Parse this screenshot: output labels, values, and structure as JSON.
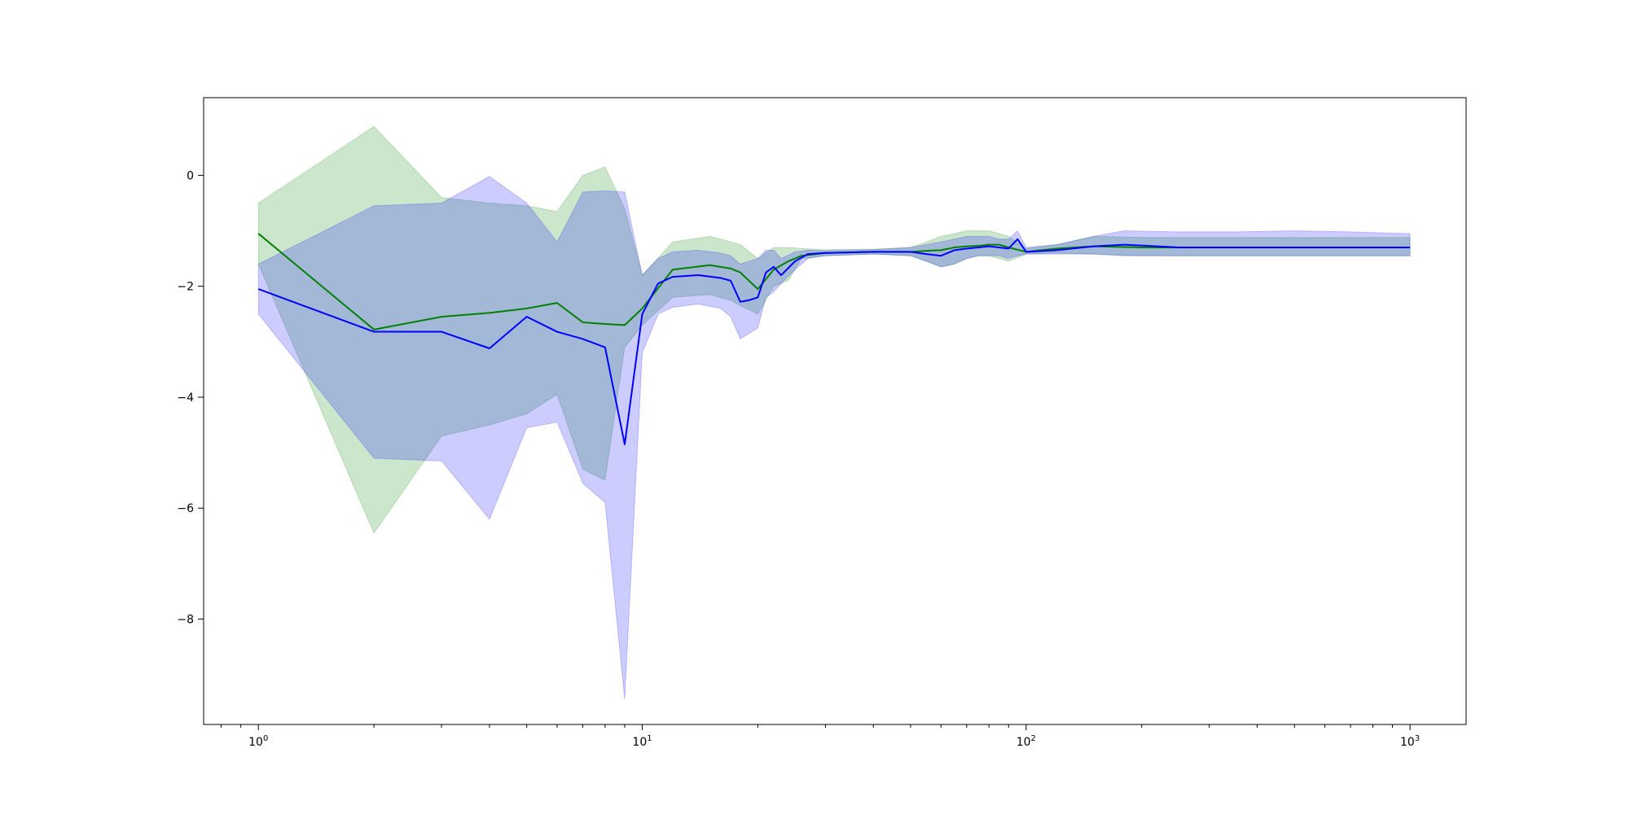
{
  "chart_data": {
    "type": "line",
    "title": "",
    "xlabel": "",
    "ylabel": "",
    "xscale": "log",
    "xlim": [
      0.72,
      1400
    ],
    "ylim": [
      -9.9,
      1.4
    ],
    "grid": false,
    "legend": "none",
    "x_ticks": [
      {
        "base": "10",
        "exp": "0",
        "value": 1
      },
      {
        "base": "10",
        "exp": "1",
        "value": 10
      },
      {
        "base": "10",
        "exp": "2",
        "value": 100
      },
      {
        "base": "10",
        "exp": "3",
        "value": 1000
      }
    ],
    "y_ticks": [
      {
        "label": "0",
        "value": 0
      },
      {
        "label": "−2",
        "value": -2
      },
      {
        "label": "−4",
        "value": -4
      },
      {
        "label": "−6",
        "value": -6
      },
      {
        "label": "−8",
        "value": -8
      }
    ],
    "series": [
      {
        "color": "#008000",
        "band_color": "#008000",
        "band_opacity": 0.2,
        "x": [
          1,
          2,
          3,
          4,
          5,
          6,
          7,
          8,
          9,
          10,
          12,
          15,
          17,
          18,
          20,
          22,
          24,
          26,
          30,
          40,
          50,
          55,
          60,
          65,
          70,
          75,
          80,
          85,
          90,
          100,
          120,
          150,
          200,
          300,
          500,
          700,
          1000
        ],
        "y": [
          -1.05,
          -2.78,
          -2.55,
          -2.48,
          -2.4,
          -2.3,
          -2.65,
          -2.68,
          -2.7,
          -2.4,
          -1.7,
          -1.62,
          -1.68,
          -1.75,
          -2.05,
          -1.7,
          -1.55,
          -1.45,
          -1.4,
          -1.38,
          -1.38,
          -1.36,
          -1.35,
          -1.3,
          -1.28,
          -1.27,
          -1.25,
          -1.25,
          -1.3,
          -1.38,
          -1.32,
          -1.28,
          -1.3,
          -1.3,
          -1.3,
          -1.3,
          -1.3
        ],
        "lower": [
          -1.6,
          -6.45,
          -4.7,
          -4.5,
          -4.3,
          -3.95,
          -5.3,
          -5.5,
          -3.1,
          -2.7,
          -2.2,
          -2.15,
          -2.25,
          -2.35,
          -2.5,
          -2.0,
          -1.9,
          -1.5,
          -1.45,
          -1.42,
          -1.45,
          -1.55,
          -1.65,
          -1.6,
          -1.5,
          -1.45,
          -1.45,
          -1.5,
          -1.55,
          -1.42,
          -1.4,
          -1.42,
          -1.45,
          -1.45,
          -1.45,
          -1.45,
          -1.45
        ],
        "upper": [
          -0.5,
          0.88,
          -0.4,
          -0.5,
          -0.55,
          -0.65,
          0.0,
          0.15,
          -0.6,
          -1.8,
          -1.2,
          -1.1,
          -1.2,
          -1.25,
          -1.5,
          -1.3,
          -1.3,
          -1.32,
          -1.34,
          -1.33,
          -1.3,
          -1.2,
          -1.1,
          -1.05,
          -1.0,
          -1.0,
          -1.0,
          -1.05,
          -1.1,
          -1.32,
          -1.25,
          -1.1,
          -1.12,
          -1.12,
          -1.12,
          -1.12,
          -1.12
        ]
      },
      {
        "color": "#0000ff",
        "band_color": "#0000ff",
        "band_opacity": 0.2,
        "x": [
          1,
          2,
          3,
          4,
          5,
          6,
          7,
          8,
          9,
          10,
          11,
          12,
          14,
          16,
          17,
          18,
          19,
          20,
          21,
          22,
          23,
          25,
          27,
          30,
          40,
          50,
          55,
          60,
          65,
          70,
          75,
          80,
          85,
          90,
          95,
          100,
          120,
          150,
          180,
          250,
          350,
          500,
          700,
          1000
        ],
        "y": [
          -2.05,
          -2.82,
          -2.82,
          -3.12,
          -2.55,
          -2.82,
          -2.95,
          -3.1,
          -4.85,
          -2.5,
          -1.95,
          -1.83,
          -1.8,
          -1.85,
          -1.9,
          -2.28,
          -2.25,
          -2.2,
          -1.75,
          -1.65,
          -1.8,
          -1.55,
          -1.42,
          -1.4,
          -1.38,
          -1.38,
          -1.42,
          -1.45,
          -1.35,
          -1.32,
          -1.3,
          -1.28,
          -1.3,
          -1.32,
          -1.15,
          -1.38,
          -1.35,
          -1.28,
          -1.25,
          -1.3,
          -1.3,
          -1.3,
          -1.3,
          -1.3
        ],
        "lower": [
          -2.5,
          -5.1,
          -5.15,
          -6.2,
          -4.55,
          -4.45,
          -5.55,
          -5.9,
          -9.45,
          -3.2,
          -2.5,
          -2.38,
          -2.32,
          -2.4,
          -2.55,
          -2.95,
          -2.85,
          -2.75,
          -2.2,
          -2.1,
          -1.95,
          -1.7,
          -1.5,
          -1.45,
          -1.42,
          -1.45,
          -1.55,
          -1.65,
          -1.6,
          -1.5,
          -1.45,
          -1.45,
          -1.45,
          -1.5,
          -1.45,
          -1.42,
          -1.42,
          -1.42,
          -1.45,
          -1.45,
          -1.45,
          -1.45,
          -1.45,
          -1.45
        ],
        "upper": [
          -1.6,
          -0.55,
          -0.5,
          -0.02,
          -0.5,
          -1.2,
          -0.3,
          -0.28,
          -0.3,
          -1.8,
          -1.5,
          -1.38,
          -1.35,
          -1.4,
          -1.45,
          -1.6,
          -1.55,
          -1.5,
          -1.35,
          -1.35,
          -1.5,
          -1.38,
          -1.35,
          -1.36,
          -1.34,
          -1.3,
          -1.25,
          -1.2,
          -1.15,
          -1.1,
          -1.1,
          -1.1,
          -1.15,
          -1.15,
          -1.0,
          -1.3,
          -1.25,
          -1.1,
          -1.0,
          -1.02,
          -1.02,
          -1.0,
          -1.02,
          -1.05
        ]
      }
    ]
  }
}
